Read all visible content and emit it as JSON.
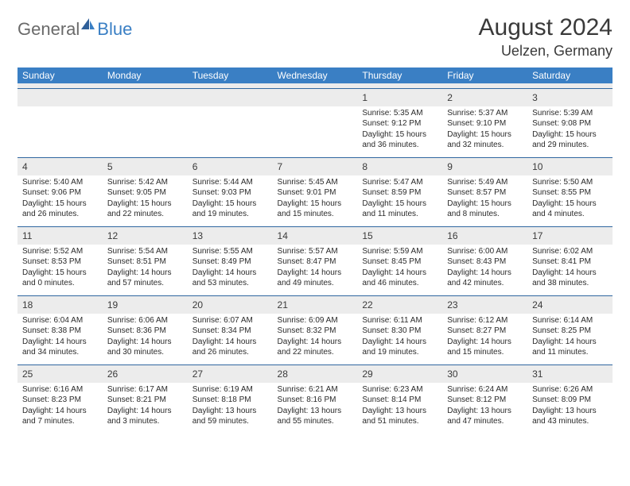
{
  "brand": {
    "general": "General",
    "blue": "Blue"
  },
  "title": "August 2024",
  "location": "Uelzen, Germany",
  "colors": {
    "header_bar": "#3a7fc4",
    "row_rule": "#3067a0",
    "band": "#ececec",
    "text": "#3a3a3a",
    "body_text": "#2a2a2a",
    "logo_gray": "#6a6a6a",
    "logo_blue": "#3a7fc4",
    "background": "#ffffff"
  },
  "typography": {
    "month_title_pt": 30,
    "location_pt": 18,
    "dow_pt": 12,
    "daynum_pt": 12,
    "body_pt": 10
  },
  "dow": [
    "Sunday",
    "Monday",
    "Tuesday",
    "Wednesday",
    "Thursday",
    "Friday",
    "Saturday"
  ],
  "weeks": [
    [
      null,
      null,
      null,
      null,
      {
        "n": "1",
        "sunrise": "5:35 AM",
        "sunset": "9:12 PM",
        "dlh": "15",
        "dlm": "36"
      },
      {
        "n": "2",
        "sunrise": "5:37 AM",
        "sunset": "9:10 PM",
        "dlh": "15",
        "dlm": "32"
      },
      {
        "n": "3",
        "sunrise": "5:39 AM",
        "sunset": "9:08 PM",
        "dlh": "15",
        "dlm": "29"
      }
    ],
    [
      {
        "n": "4",
        "sunrise": "5:40 AM",
        "sunset": "9:06 PM",
        "dlh": "15",
        "dlm": "26"
      },
      {
        "n": "5",
        "sunrise": "5:42 AM",
        "sunset": "9:05 PM",
        "dlh": "15",
        "dlm": "22"
      },
      {
        "n": "6",
        "sunrise": "5:44 AM",
        "sunset": "9:03 PM",
        "dlh": "15",
        "dlm": "19"
      },
      {
        "n": "7",
        "sunrise": "5:45 AM",
        "sunset": "9:01 PM",
        "dlh": "15",
        "dlm": "15"
      },
      {
        "n": "8",
        "sunrise": "5:47 AM",
        "sunset": "8:59 PM",
        "dlh": "15",
        "dlm": "11"
      },
      {
        "n": "9",
        "sunrise": "5:49 AM",
        "sunset": "8:57 PM",
        "dlh": "15",
        "dlm": "8"
      },
      {
        "n": "10",
        "sunrise": "5:50 AM",
        "sunset": "8:55 PM",
        "dlh": "15",
        "dlm": "4"
      }
    ],
    [
      {
        "n": "11",
        "sunrise": "5:52 AM",
        "sunset": "8:53 PM",
        "dlh": "15",
        "dlm": "0"
      },
      {
        "n": "12",
        "sunrise": "5:54 AM",
        "sunset": "8:51 PM",
        "dlh": "14",
        "dlm": "57"
      },
      {
        "n": "13",
        "sunrise": "5:55 AM",
        "sunset": "8:49 PM",
        "dlh": "14",
        "dlm": "53"
      },
      {
        "n": "14",
        "sunrise": "5:57 AM",
        "sunset": "8:47 PM",
        "dlh": "14",
        "dlm": "49"
      },
      {
        "n": "15",
        "sunrise": "5:59 AM",
        "sunset": "8:45 PM",
        "dlh": "14",
        "dlm": "46"
      },
      {
        "n": "16",
        "sunrise": "6:00 AM",
        "sunset": "8:43 PM",
        "dlh": "14",
        "dlm": "42"
      },
      {
        "n": "17",
        "sunrise": "6:02 AM",
        "sunset": "8:41 PM",
        "dlh": "14",
        "dlm": "38"
      }
    ],
    [
      {
        "n": "18",
        "sunrise": "6:04 AM",
        "sunset": "8:38 PM",
        "dlh": "14",
        "dlm": "34"
      },
      {
        "n": "19",
        "sunrise": "6:06 AM",
        "sunset": "8:36 PM",
        "dlh": "14",
        "dlm": "30"
      },
      {
        "n": "20",
        "sunrise": "6:07 AM",
        "sunset": "8:34 PM",
        "dlh": "14",
        "dlm": "26"
      },
      {
        "n": "21",
        "sunrise": "6:09 AM",
        "sunset": "8:32 PM",
        "dlh": "14",
        "dlm": "22"
      },
      {
        "n": "22",
        "sunrise": "6:11 AM",
        "sunset": "8:30 PM",
        "dlh": "14",
        "dlm": "19"
      },
      {
        "n": "23",
        "sunrise": "6:12 AM",
        "sunset": "8:27 PM",
        "dlh": "14",
        "dlm": "15"
      },
      {
        "n": "24",
        "sunrise": "6:14 AM",
        "sunset": "8:25 PM",
        "dlh": "14",
        "dlm": "11"
      }
    ],
    [
      {
        "n": "25",
        "sunrise": "6:16 AM",
        "sunset": "8:23 PM",
        "dlh": "14",
        "dlm": "7"
      },
      {
        "n": "26",
        "sunrise": "6:17 AM",
        "sunset": "8:21 PM",
        "dlh": "14",
        "dlm": "3"
      },
      {
        "n": "27",
        "sunrise": "6:19 AM",
        "sunset": "8:18 PM",
        "dlh": "13",
        "dlm": "59"
      },
      {
        "n": "28",
        "sunrise": "6:21 AM",
        "sunset": "8:16 PM",
        "dlh": "13",
        "dlm": "55"
      },
      {
        "n": "29",
        "sunrise": "6:23 AM",
        "sunset": "8:14 PM",
        "dlh": "13",
        "dlm": "51"
      },
      {
        "n": "30",
        "sunrise": "6:24 AM",
        "sunset": "8:12 PM",
        "dlh": "13",
        "dlm": "47"
      },
      {
        "n": "31",
        "sunrise": "6:26 AM",
        "sunset": "8:09 PM",
        "dlh": "13",
        "dlm": "43"
      }
    ]
  ],
  "labels": {
    "sunrise": "Sunrise: ",
    "sunset": "Sunset: ",
    "daylight_prefix": "Daylight: ",
    "hours_word": " hours",
    "and_word": "and ",
    "minutes_word": " minutes."
  }
}
